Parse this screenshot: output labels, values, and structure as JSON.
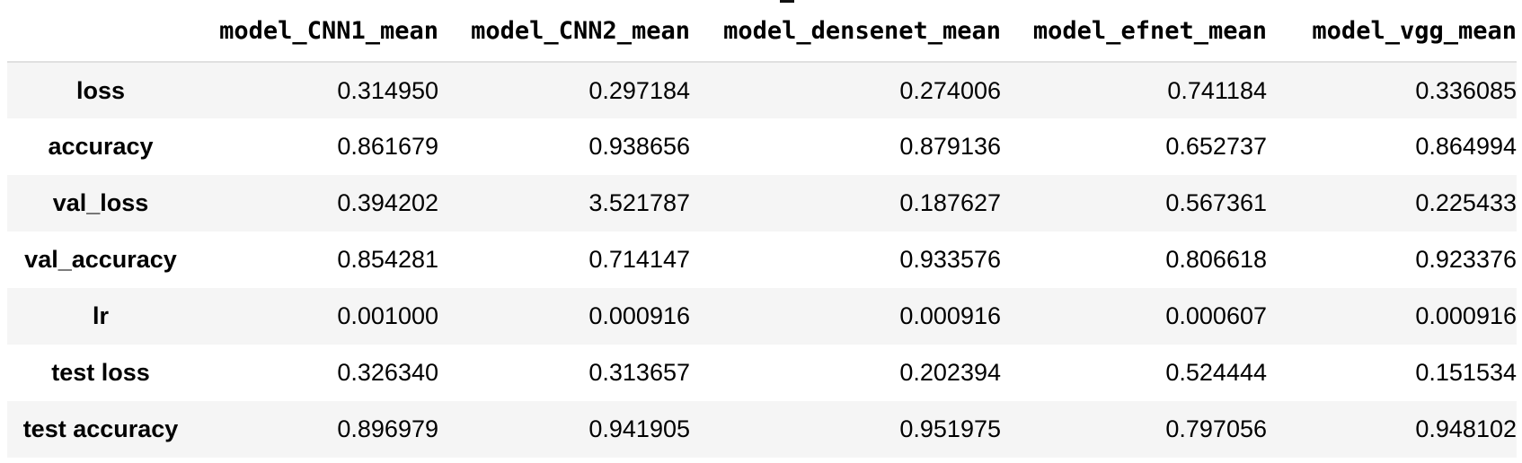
{
  "table": {
    "columns": [
      "model_CNN1_mean",
      "model_CNN2_mean",
      "model_densenet_mean",
      "model_efnet_mean",
      "model_vgg_mean"
    ],
    "rows": [
      {
        "label": "loss",
        "values": [
          "0.314950",
          "0.297184",
          "0.274006",
          "0.741184",
          "0.336085"
        ]
      },
      {
        "label": "accuracy",
        "values": [
          "0.861679",
          "0.938656",
          "0.879136",
          "0.652737",
          "0.864994"
        ]
      },
      {
        "label": "val_loss",
        "values": [
          "0.394202",
          "3.521787",
          "0.187627",
          "0.567361",
          "0.225433"
        ]
      },
      {
        "label": "val_accuracy",
        "values": [
          "0.854281",
          "0.714147",
          "0.933576",
          "0.806618",
          "0.923376"
        ]
      },
      {
        "label": "lr",
        "values": [
          "0.001000",
          "0.000916",
          "0.000916",
          "0.000607",
          "0.000916"
        ]
      },
      {
        "label": "test loss",
        "values": [
          "0.326340",
          "0.313657",
          "0.202394",
          "0.524444",
          "0.151534"
        ]
      },
      {
        "label": "test accuracy",
        "values": [
          "0.896979",
          "0.941905",
          "0.951975",
          "0.797056",
          "0.948102"
        ]
      }
    ]
  }
}
